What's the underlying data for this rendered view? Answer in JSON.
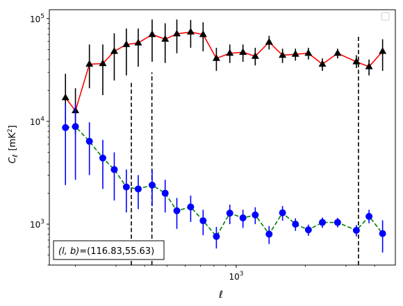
{
  "chart_data": {
    "type": "line",
    "xscale": "log",
    "yscale": "log",
    "xlim": [
      154,
      4920
    ],
    "ylim": [
      400,
      122000
    ],
    "xlabel": "ℓ",
    "ylabel_main": "C",
    "ylabel_sub": "ℓ",
    "ylabel_unit": "[mK",
    "ylabel_sup": "2",
    "ylabel_close": "]",
    "xticks": [
      {
        "value": 1000,
        "base": "10",
        "exp": "3"
      }
    ],
    "yticks": [
      {
        "value": 1000,
        "base": "10",
        "exp": "3"
      },
      {
        "value": 10000,
        "base": "10",
        "exp": "4"
      },
      {
        "value": 100000,
        "base": "10",
        "exp": "5"
      }
    ],
    "legend": {
      "position": "upper right",
      "entries": []
    },
    "annotation": {
      "italic_left": "(l, b)",
      "text": "=(116.83,55.63)",
      "position": "lower left"
    },
    "vlines": [
      {
        "x": 350,
        "ymin": 400,
        "ymax": 25000,
        "color": "#000000",
        "style": "dashed"
      },
      {
        "x": 430,
        "ymin": 400,
        "ymax": 30000,
        "color": "#000000",
        "style": "dashed"
      },
      {
        "x": 3400,
        "ymin": 400,
        "ymax": 70000,
        "color": "#000000",
        "style": "dashed"
      }
    ],
    "series": [
      {
        "marker": "triangle",
        "line_color": "#ff0000",
        "marker_color": "#000000",
        "error_color": "#000000",
        "line_style": "solid",
        "points": [
          {
            "x": 181,
            "y": 17000,
            "lo": 8000,
            "hi": 29000
          },
          {
            "x": 200,
            "y": 12700,
            "lo": 7500,
            "hi": 21000
          },
          {
            "x": 230,
            "y": 36000,
            "lo": 21000,
            "hi": 56000
          },
          {
            "x": 263,
            "y": 36500,
            "lo": 18000,
            "hi": 56000
          },
          {
            "x": 295,
            "y": 48000,
            "lo": 25000,
            "hi": 72000
          },
          {
            "x": 333,
            "y": 56000,
            "lo": 28000,
            "hi": 80000
          },
          {
            "x": 375,
            "y": 58000,
            "lo": 34000,
            "hi": 80000
          },
          {
            "x": 431,
            "y": 70000,
            "lo": 38000,
            "hi": 98000
          },
          {
            "x": 491,
            "y": 63000,
            "lo": 37000,
            "hi": 90000
          },
          {
            "x": 552,
            "y": 71000,
            "lo": 46000,
            "hi": 98000
          },
          {
            "x": 634,
            "y": 74000,
            "lo": 52000,
            "hi": 97000
          },
          {
            "x": 718,
            "y": 70000,
            "lo": 48000,
            "hi": 92000
          },
          {
            "x": 820,
            "y": 41000,
            "lo": 31000,
            "hi": 52000
          },
          {
            "x": 938,
            "y": 46000,
            "lo": 37000,
            "hi": 56000
          },
          {
            "x": 1070,
            "y": 47000,
            "lo": 38000,
            "hi": 56000
          },
          {
            "x": 1210,
            "y": 43000,
            "lo": 35000,
            "hi": 52000
          },
          {
            "x": 1390,
            "y": 59000,
            "lo": 50000,
            "hi": 68000
          },
          {
            "x": 1590,
            "y": 44000,
            "lo": 37000,
            "hi": 51000
          },
          {
            "x": 1810,
            "y": 45000,
            "lo": 39000,
            "hi": 51000
          },
          {
            "x": 2060,
            "y": 46000,
            "lo": 40000,
            "hi": 52000
          },
          {
            "x": 2370,
            "y": 36000,
            "lo": 31000,
            "hi": 41000
          },
          {
            "x": 2760,
            "y": 46000,
            "lo": 41000,
            "hi": 51000
          },
          {
            "x": 3330,
            "y": 38000,
            "lo": 33000,
            "hi": 44000
          },
          {
            "x": 3780,
            "y": 34000,
            "lo": 28000,
            "hi": 40000
          },
          {
            "x": 4330,
            "y": 48000,
            "lo": 31000,
            "hi": 63000
          }
        ]
      },
      {
        "marker": "circle",
        "line_color": "#008000",
        "marker_color": "#0000ff",
        "error_color": "#0000ff",
        "line_style": "dashed",
        "points": [
          {
            "x": 181,
            "y": 8700,
            "lo": 2400,
            "hi": 15000
          },
          {
            "x": 200,
            "y": 8900,
            "lo": 2700,
            "hi": 15000
          },
          {
            "x": 230,
            "y": 6400,
            "lo": 3000,
            "hi": 9800
          },
          {
            "x": 263,
            "y": 4400,
            "lo": 2200,
            "hi": 6600
          },
          {
            "x": 295,
            "y": 3400,
            "lo": 1700,
            "hi": 5000
          },
          {
            "x": 333,
            "y": 2300,
            "lo": 1300,
            "hi": 3400
          },
          {
            "x": 375,
            "y": 2200,
            "lo": 1400,
            "hi": 3000
          },
          {
            "x": 431,
            "y": 2400,
            "lo": 1500,
            "hi": 3400
          },
          {
            "x": 491,
            "y": 2000,
            "lo": 1300,
            "hi": 2700
          },
          {
            "x": 552,
            "y": 1350,
            "lo": 900,
            "hi": 1800
          },
          {
            "x": 634,
            "y": 1470,
            "lo": 1050,
            "hi": 1900
          },
          {
            "x": 718,
            "y": 1080,
            "lo": 780,
            "hi": 1380
          },
          {
            "x": 820,
            "y": 760,
            "lo": 580,
            "hi": 940
          },
          {
            "x": 938,
            "y": 1280,
            "lo": 1000,
            "hi": 1550
          },
          {
            "x": 1070,
            "y": 1150,
            "lo": 920,
            "hi": 1380
          },
          {
            "x": 1210,
            "y": 1230,
            "lo": 1000,
            "hi": 1460
          },
          {
            "x": 1390,
            "y": 800,
            "lo": 640,
            "hi": 960
          },
          {
            "x": 1590,
            "y": 1290,
            "lo": 1080,
            "hi": 1500
          },
          {
            "x": 1810,
            "y": 1000,
            "lo": 860,
            "hi": 1140
          },
          {
            "x": 2060,
            "y": 880,
            "lo": 770,
            "hi": 990
          },
          {
            "x": 2370,
            "y": 1040,
            "lo": 920,
            "hi": 1160
          },
          {
            "x": 2760,
            "y": 1040,
            "lo": 930,
            "hi": 1150
          },
          {
            "x": 3330,
            "y": 870,
            "lo": 760,
            "hi": 980
          },
          {
            "x": 3780,
            "y": 1190,
            "lo": 1020,
            "hi": 1380
          },
          {
            "x": 4330,
            "y": 810,
            "lo": 530,
            "hi": 1090
          }
        ]
      }
    ]
  }
}
